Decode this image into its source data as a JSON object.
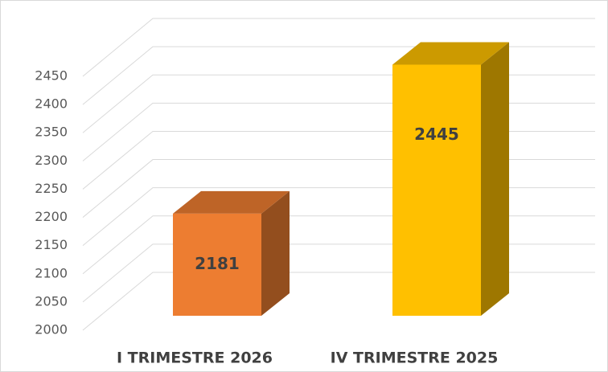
{
  "chart_data": {
    "type": "bar3d",
    "categories": [
      "I TRIMESTRE 2026",
      "IV TRIMESTRE 2025"
    ],
    "values": [
      2181,
      2445
    ],
    "colors": [
      "#ed7d31",
      "#ffc000"
    ],
    "ylim": [
      2000,
      2450
    ],
    "yticks": [
      2000,
      2050,
      2100,
      2150,
      2200,
      2250,
      2300,
      2350,
      2400,
      2450
    ],
    "grid": true
  }
}
